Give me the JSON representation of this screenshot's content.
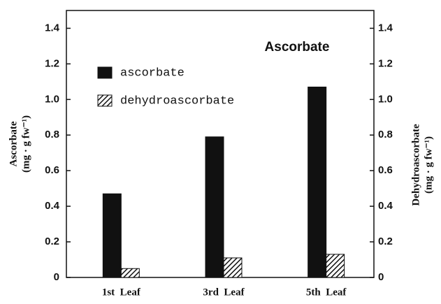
{
  "chart_data": {
    "type": "bar",
    "annotation": "Ascorbate",
    "categories": [
      "1st  Leaf",
      "3rd  Leaf",
      "5th  Leaf"
    ],
    "series": [
      {
        "name": "ascorbate",
        "color": "#111111",
        "fill_style": "solid",
        "values": [
          0.47,
          0.79,
          1.07
        ]
      },
      {
        "name": "dehydroascorbate",
        "color": "#111111",
        "fill_style": "hatch",
        "axis": "y2",
        "values": [
          0.05,
          0.11,
          0.13
        ]
      }
    ],
    "ylabel": [
      "Ascorbate",
      "(mg · g fw⁻¹)"
    ],
    "y2label": [
      "Dehydroascorbate",
      "(mg · g fw⁻¹)"
    ],
    "ylim": [
      0,
      1.5
    ],
    "yticks": [
      0,
      0.2,
      0.4,
      0.6,
      0.8,
      {
        "value": 1,
        "label": "1.0"
      },
      1.2,
      1.4
    ],
    "y2lim": [
      0,
      1.5
    ],
    "y2ticks": [
      0,
      0.2,
      0.4,
      0.6,
      0.8,
      {
        "value": 1,
        "label": "1.0"
      },
      1.2,
      1.4
    ]
  }
}
